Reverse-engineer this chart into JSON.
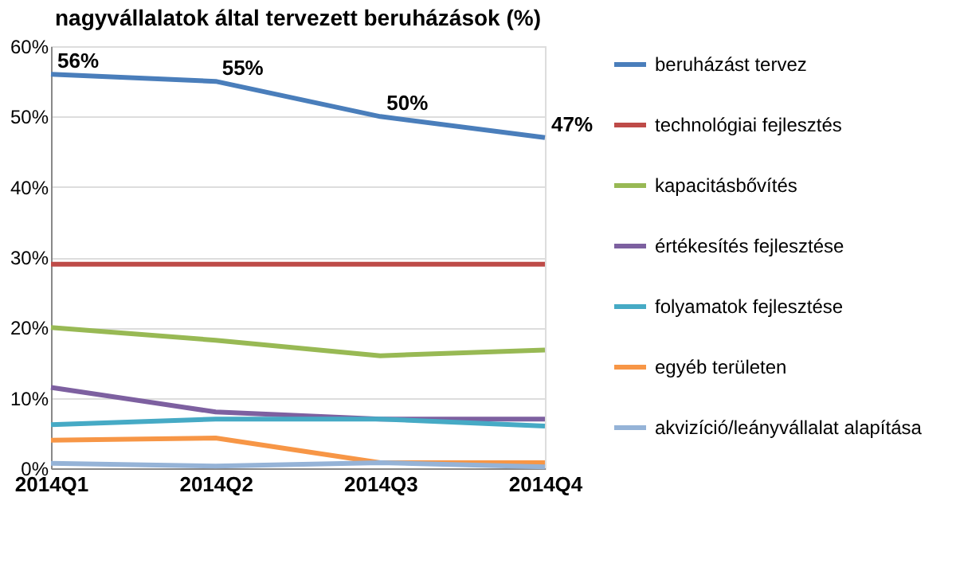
{
  "chart_data": {
    "type": "line",
    "title": "nagyvállalatok által tervezett beruházások (%)",
    "categories": [
      "2014Q1",
      "2014Q2",
      "2014Q3",
      "2014Q4"
    ],
    "ylim": [
      0,
      60
    ],
    "yticks": [
      {
        "value": 0,
        "label": "0%"
      },
      {
        "value": 10,
        "label": "10%"
      },
      {
        "value": 20,
        "label": "20%"
      },
      {
        "value": 30,
        "label": "30%"
      },
      {
        "value": 40,
        "label": "40%"
      },
      {
        "value": 50,
        "label": "50%"
      },
      {
        "value": 60,
        "label": "60%"
      }
    ],
    "grid": "y",
    "legend": "right",
    "marker": "none",
    "line_style": "solid",
    "series": [
      {
        "name": "beruházást tervez",
        "color": "#4a7ebb",
        "values": [
          56,
          55,
          50,
          47
        ],
        "value_labels": [
          "56%",
          "55%",
          "50%",
          "47%"
        ]
      },
      {
        "name": "technológiai fejlesztés",
        "color": "#be4b48",
        "values": [
          29,
          29,
          29,
          29
        ]
      },
      {
        "name": "kapacitásbővítés",
        "color": "#98b954",
        "values": [
          20,
          18.2,
          16,
          16.8
        ]
      },
      {
        "name": "értékesítés fejlesztése",
        "color": "#7d60a0",
        "values": [
          11.5,
          8,
          7,
          7
        ]
      },
      {
        "name": "folyamatok fejlesztése",
        "color": "#46aac5",
        "values": [
          6.2,
          7,
          7,
          6
        ]
      },
      {
        "name": "egyéb területen",
        "color": "#f79646",
        "values": [
          4,
          4.3,
          0.8,
          0.8
        ]
      },
      {
        "name": "akvizíció/leányvállalat alapítása",
        "color": "#95b3d7",
        "values": [
          0.7,
          0.3,
          0.8,
          0.2
        ]
      }
    ]
  }
}
